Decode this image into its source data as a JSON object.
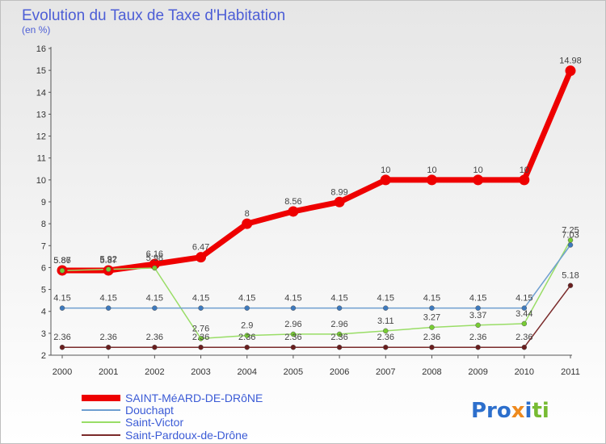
{
  "title": "Evolution du Taux de Taxe d'Habitation",
  "subtitle": "(en %)",
  "logo": "Proxiti",
  "colors": {
    "background_top": "#e6e6e6",
    "axis": "#444444",
    "grid": "#cfcfcf"
  },
  "chart_data": {
    "type": "line",
    "title": "Evolution du Taux de Taxe d'Habitation",
    "subtitle": "(en %)",
    "xlabel": "",
    "ylabel": "",
    "x": [
      "2000",
      "2001",
      "2002",
      "2003",
      "2004",
      "2005",
      "2006",
      "2007",
      "2008",
      "2009",
      "2010",
      "2011"
    ],
    "ylim": [
      2,
      16
    ],
    "yticks": [
      2,
      3,
      4,
      5,
      6,
      7,
      8,
      9,
      10,
      11,
      12,
      13,
      14,
      15,
      16
    ],
    "grid": false,
    "legend_position": "bottom-left",
    "series": [
      {
        "name": "SAINT-MéARD-DE-DRôNE",
        "color": "#ee0000",
        "marker_color": "#ee0000",
        "width": 7,
        "values": [
          5.87,
          5.87,
          6.16,
          6.47,
          8,
          8.56,
          8.99,
          10,
          10,
          10,
          10,
          14.98
        ]
      },
      {
        "name": "Douchapt",
        "color": "#6f9fd0",
        "marker_color": "#3d79bd",
        "width": 1.5,
        "values": [
          4.15,
          4.15,
          4.15,
          4.15,
          4.15,
          4.15,
          4.15,
          4.15,
          4.15,
          4.15,
          4.15,
          7.03
        ]
      },
      {
        "name": "Saint-Victor",
        "color": "#99dd66",
        "marker_color": "#77cc33",
        "width": 1.5,
        "values": [
          5.86,
          5.92,
          5.98,
          2.76,
          2.9,
          2.96,
          2.96,
          3.11,
          3.27,
          3.37,
          3.44,
          7.25
        ]
      },
      {
        "name": "Saint-Pardoux-de-Drône",
        "color": "#7a2a2a",
        "marker_color": "#6a1e1e",
        "width": 1.5,
        "values": [
          2.36,
          2.36,
          2.36,
          2.36,
          2.36,
          2.36,
          2.36,
          2.36,
          2.36,
          2.36,
          2.36,
          5.18
        ]
      }
    ],
    "data_labels": {
      "SAINT-MéARD-DE-DRôNE": [
        "5.87",
        "5.87",
        "6.16",
        "6.47",
        "8",
        "8.56",
        "8.99",
        "10",
        "10",
        "10",
        "10",
        "14.98"
      ],
      "Douchapt": [
        "4.15",
        "4.15",
        "4.15",
        "4.15",
        "4.15",
        "4.15",
        "4.15",
        "4.15",
        "4.15",
        "4.15",
        "4.15",
        "7.03"
      ],
      "Saint-Victor": [
        "5.86",
        "5.92",
        "5.98",
        "2.76",
        "2.9",
        "2.96",
        "2.96",
        "3.11",
        "3.27",
        "3.37",
        "3.44",
        "7.25"
      ],
      "Saint-Pardoux-de-Drône": [
        "2.36",
        "2.36",
        "2.36",
        "2.36",
        "2.36",
        "2.36",
        "2.36",
        "2.36",
        "2.36",
        "2.36",
        "2.36",
        "5.18"
      ]
    }
  }
}
